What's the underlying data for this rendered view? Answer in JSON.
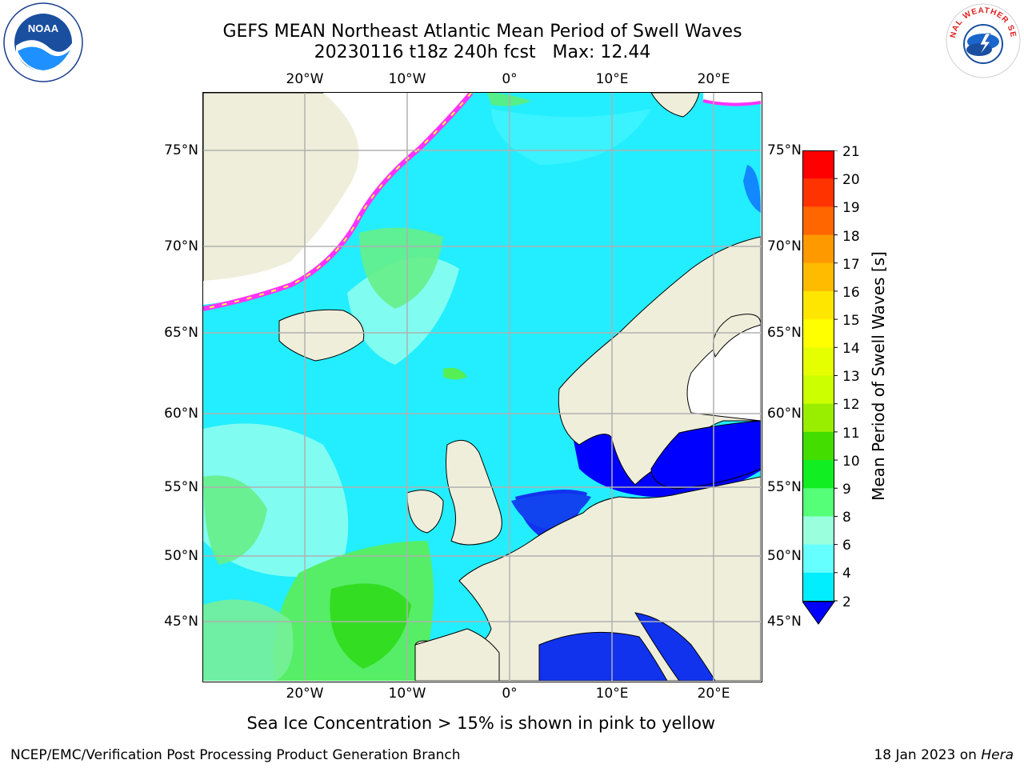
{
  "header": {
    "title_line1": "GEFS MEAN Northeast Atlantic Mean Period of Swell Waves",
    "title_line2": "20230116 t18z 240h fcst   Max: 12.44"
  },
  "logos": {
    "noaa": {
      "icon": "noaa-logo-icon",
      "text": "NOAA"
    },
    "nws": {
      "icon": "nws-logo-icon",
      "text": "NATIONAL WEATHER SERVICE"
    }
  },
  "map": {
    "top_lon_labels": [
      "20°W",
      "10°W",
      "0°",
      "10°E",
      "20°E"
    ],
    "bottom_lon_labels": [
      "20°W",
      "10°W",
      "0°",
      "10°E",
      "20°E"
    ],
    "left_lat_labels": [
      "75°N",
      "70°N",
      "65°N",
      "60°N",
      "55°N",
      "50°N",
      "45°N"
    ],
    "right_lat_labels": [
      "75°N",
      "70°N",
      "65°N",
      "60°N",
      "55°N",
      "50°N",
      "45°N"
    ],
    "colors": {
      "land": "#efeedb",
      "sea_ice": "#ffffff",
      "ice_edge_pink": "#ff33ff",
      "ice_edge_yellow": "#ffff33",
      "grid": "#b0b0b0"
    }
  },
  "colorbar": {
    "title": "Mean Period of Swell Waves [s]",
    "labels": [
      "21",
      "20",
      "19",
      "18",
      "17",
      "16",
      "15",
      "14",
      "13",
      "12",
      "11",
      "10",
      "9",
      "8",
      "6",
      "4",
      "2"
    ],
    "colors": [
      "#ff0000",
      "#ff3300",
      "#ff6600",
      "#ff9900",
      "#ffbb00",
      "#ffe600",
      "#ffff00",
      "#e6ff00",
      "#ccff00",
      "#99ee00",
      "#44dd00",
      "#11ee22",
      "#55ff77",
      "#99ffdd",
      "#66ffff",
      "#00eeff",
      "#0088ff"
    ],
    "under_color": "#0000ff"
  },
  "notes": {
    "sea_ice": "Sea Ice Concentration > 15% is shown in pink to yellow"
  },
  "footer": {
    "left": "NCEP/EMC/Verification Post Processing Product Generation Branch",
    "right_prefix": "18 Jan 2023 on ",
    "right_host": "Hera"
  }
}
